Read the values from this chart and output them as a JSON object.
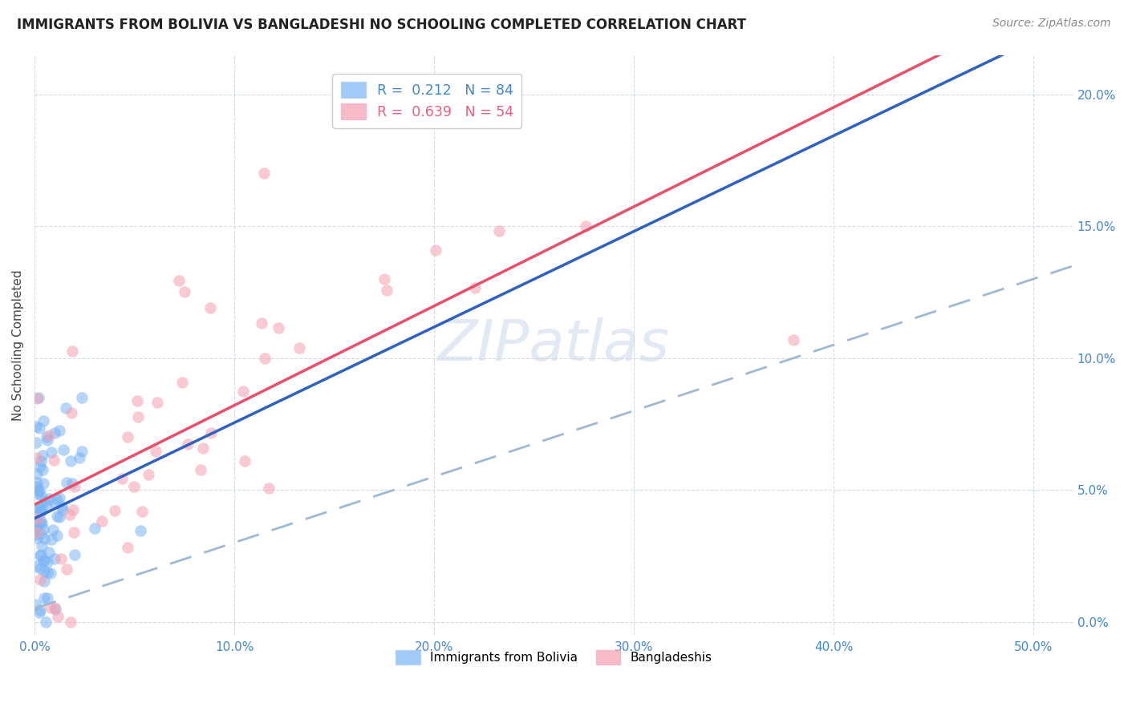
{
  "title": "IMMIGRANTS FROM BOLIVIA VS BANGLADESHI NO SCHOOLING COMPLETED CORRELATION CHART",
  "source": "Source: ZipAtlas.com",
  "ylabel": "No Schooling Completed",
  "ytick_values": [
    0.0,
    0.05,
    0.1,
    0.15,
    0.2
  ],
  "xtick_values": [
    0.0,
    0.1,
    0.2,
    0.3,
    0.4,
    0.5
  ],
  "xlim": [
    0.0,
    0.52
  ],
  "ylim": [
    -0.005,
    0.215
  ],
  "bolivia_color": "#7ab4f5",
  "bangladesh_color": "#f5a0b0",
  "bolivia_line_color": "#3060c0",
  "bangladesh_line_color": "#e8506a",
  "dashed_line_color": "#a0b8d0",
  "watermark_text": "ZIPatlas",
  "bolivia_R": 0.212,
  "bolivia_N": 84,
  "bangladesh_R": 0.639,
  "bangladesh_N": 54,
  "legend1_label": "R =  0.212   N = 84",
  "legend2_label": "R =  0.639   N = 54",
  "bottom_label1": "Immigrants from Bolivia",
  "bottom_label2": "Bangladeshis",
  "tick_color": "#4488cc",
  "title_color": "#222222",
  "source_color": "#888888"
}
